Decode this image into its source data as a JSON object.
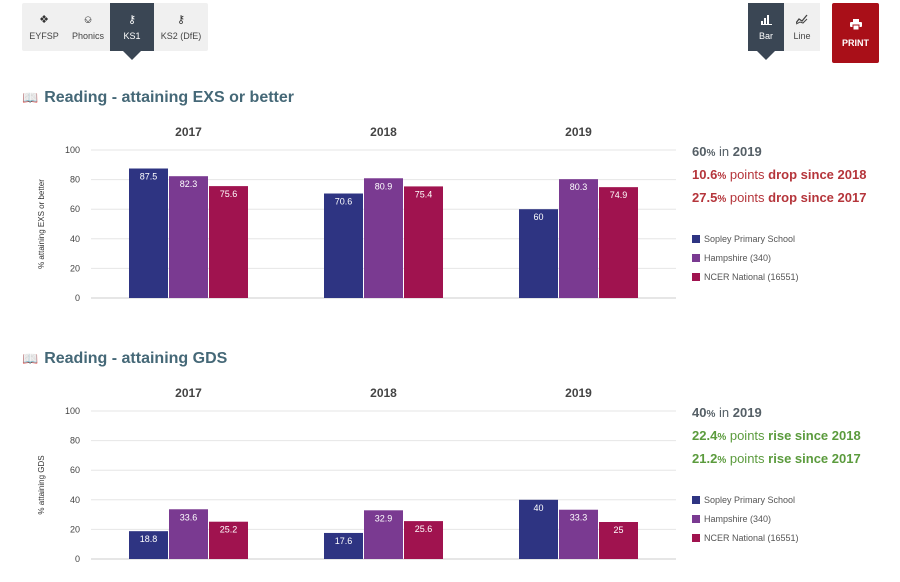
{
  "tabs": [
    {
      "label": "EYFSP",
      "icon": "puzzle-icon",
      "glyph": "❖"
    },
    {
      "label": "Phonics",
      "icon": "microphone-icon",
      "glyph": "⎉"
    },
    {
      "label": "KS1",
      "icon": "key-icon",
      "glyph": "⚷",
      "active": true
    },
    {
      "label": "KS2 (DfE)",
      "icon": "key-icon",
      "glyph": "⚷"
    }
  ],
  "view": {
    "bar_label": "Bar",
    "line_label": "Line",
    "active": "Bar"
  },
  "print_label": "PRINT",
  "colors": {
    "school": "#2e3482",
    "hampshire": "#7a3a91",
    "national": "#a0134f",
    "title": "#456877",
    "drop": "#b5353b",
    "rise": "#5b9b3d"
  },
  "sections": [
    {
      "title": "Reading - attaining EXS or better",
      "summary": {
        "line1": {
          "value": "60",
          "unit": "%",
          "word": "in",
          "year": "2019"
        },
        "line2": {
          "value": "10.6",
          "unit": "%",
          "word": "points",
          "tail": "drop since 2018"
        },
        "line3": {
          "value": "27.5",
          "unit": "%",
          "word": "points",
          "tail": "drop since 2017"
        }
      }
    },
    {
      "title": "Reading - attaining GDS",
      "summary": {
        "line1": {
          "value": "40",
          "unit": "%",
          "word": "in",
          "year": "2019"
        },
        "line2": {
          "value": "22.4",
          "unit": "%",
          "word": "points",
          "tail": "rise since 2018"
        },
        "line3": {
          "value": "21.2",
          "unit": "%",
          "word": "points",
          "tail": "rise since 2017"
        }
      }
    }
  ],
  "chart_data": [
    {
      "type": "bar",
      "categories": [
        "2017",
        "2018",
        "2019"
      ],
      "ylabel": "% attaining EXS or better",
      "ylim": [
        0,
        100
      ],
      "yticks": [
        0,
        20,
        40,
        60,
        80,
        100
      ],
      "series": [
        {
          "name": "Sopley Primary School",
          "values": [
            87.5,
            70.6,
            60
          ],
          "color": "#2e3482"
        },
        {
          "name": "Hampshire (340)",
          "values": [
            82.3,
            80.9,
            80.3
          ],
          "color": "#7a3a91"
        },
        {
          "name": "NCER National (16551)",
          "values": [
            75.6,
            75.4,
            74.9
          ],
          "color": "#a0134f"
        }
      ],
      "legend": "right"
    },
    {
      "type": "bar",
      "categories": [
        "2017",
        "2018",
        "2019"
      ],
      "ylabel": "% attaining GDS",
      "ylim": [
        0,
        100
      ],
      "yticks": [
        0,
        20,
        40,
        60,
        80,
        100
      ],
      "series": [
        {
          "name": "Sopley Primary School",
          "values": [
            18.8,
            17.6,
            40
          ],
          "color": "#2e3482"
        },
        {
          "name": "Hampshire (340)",
          "values": [
            33.6,
            32.9,
            33.3
          ],
          "color": "#7a3a91"
        },
        {
          "name": "NCER National (16551)",
          "values": [
            25.2,
            25.6,
            25
          ],
          "color": "#a0134f"
        }
      ],
      "legend": "right"
    }
  ]
}
